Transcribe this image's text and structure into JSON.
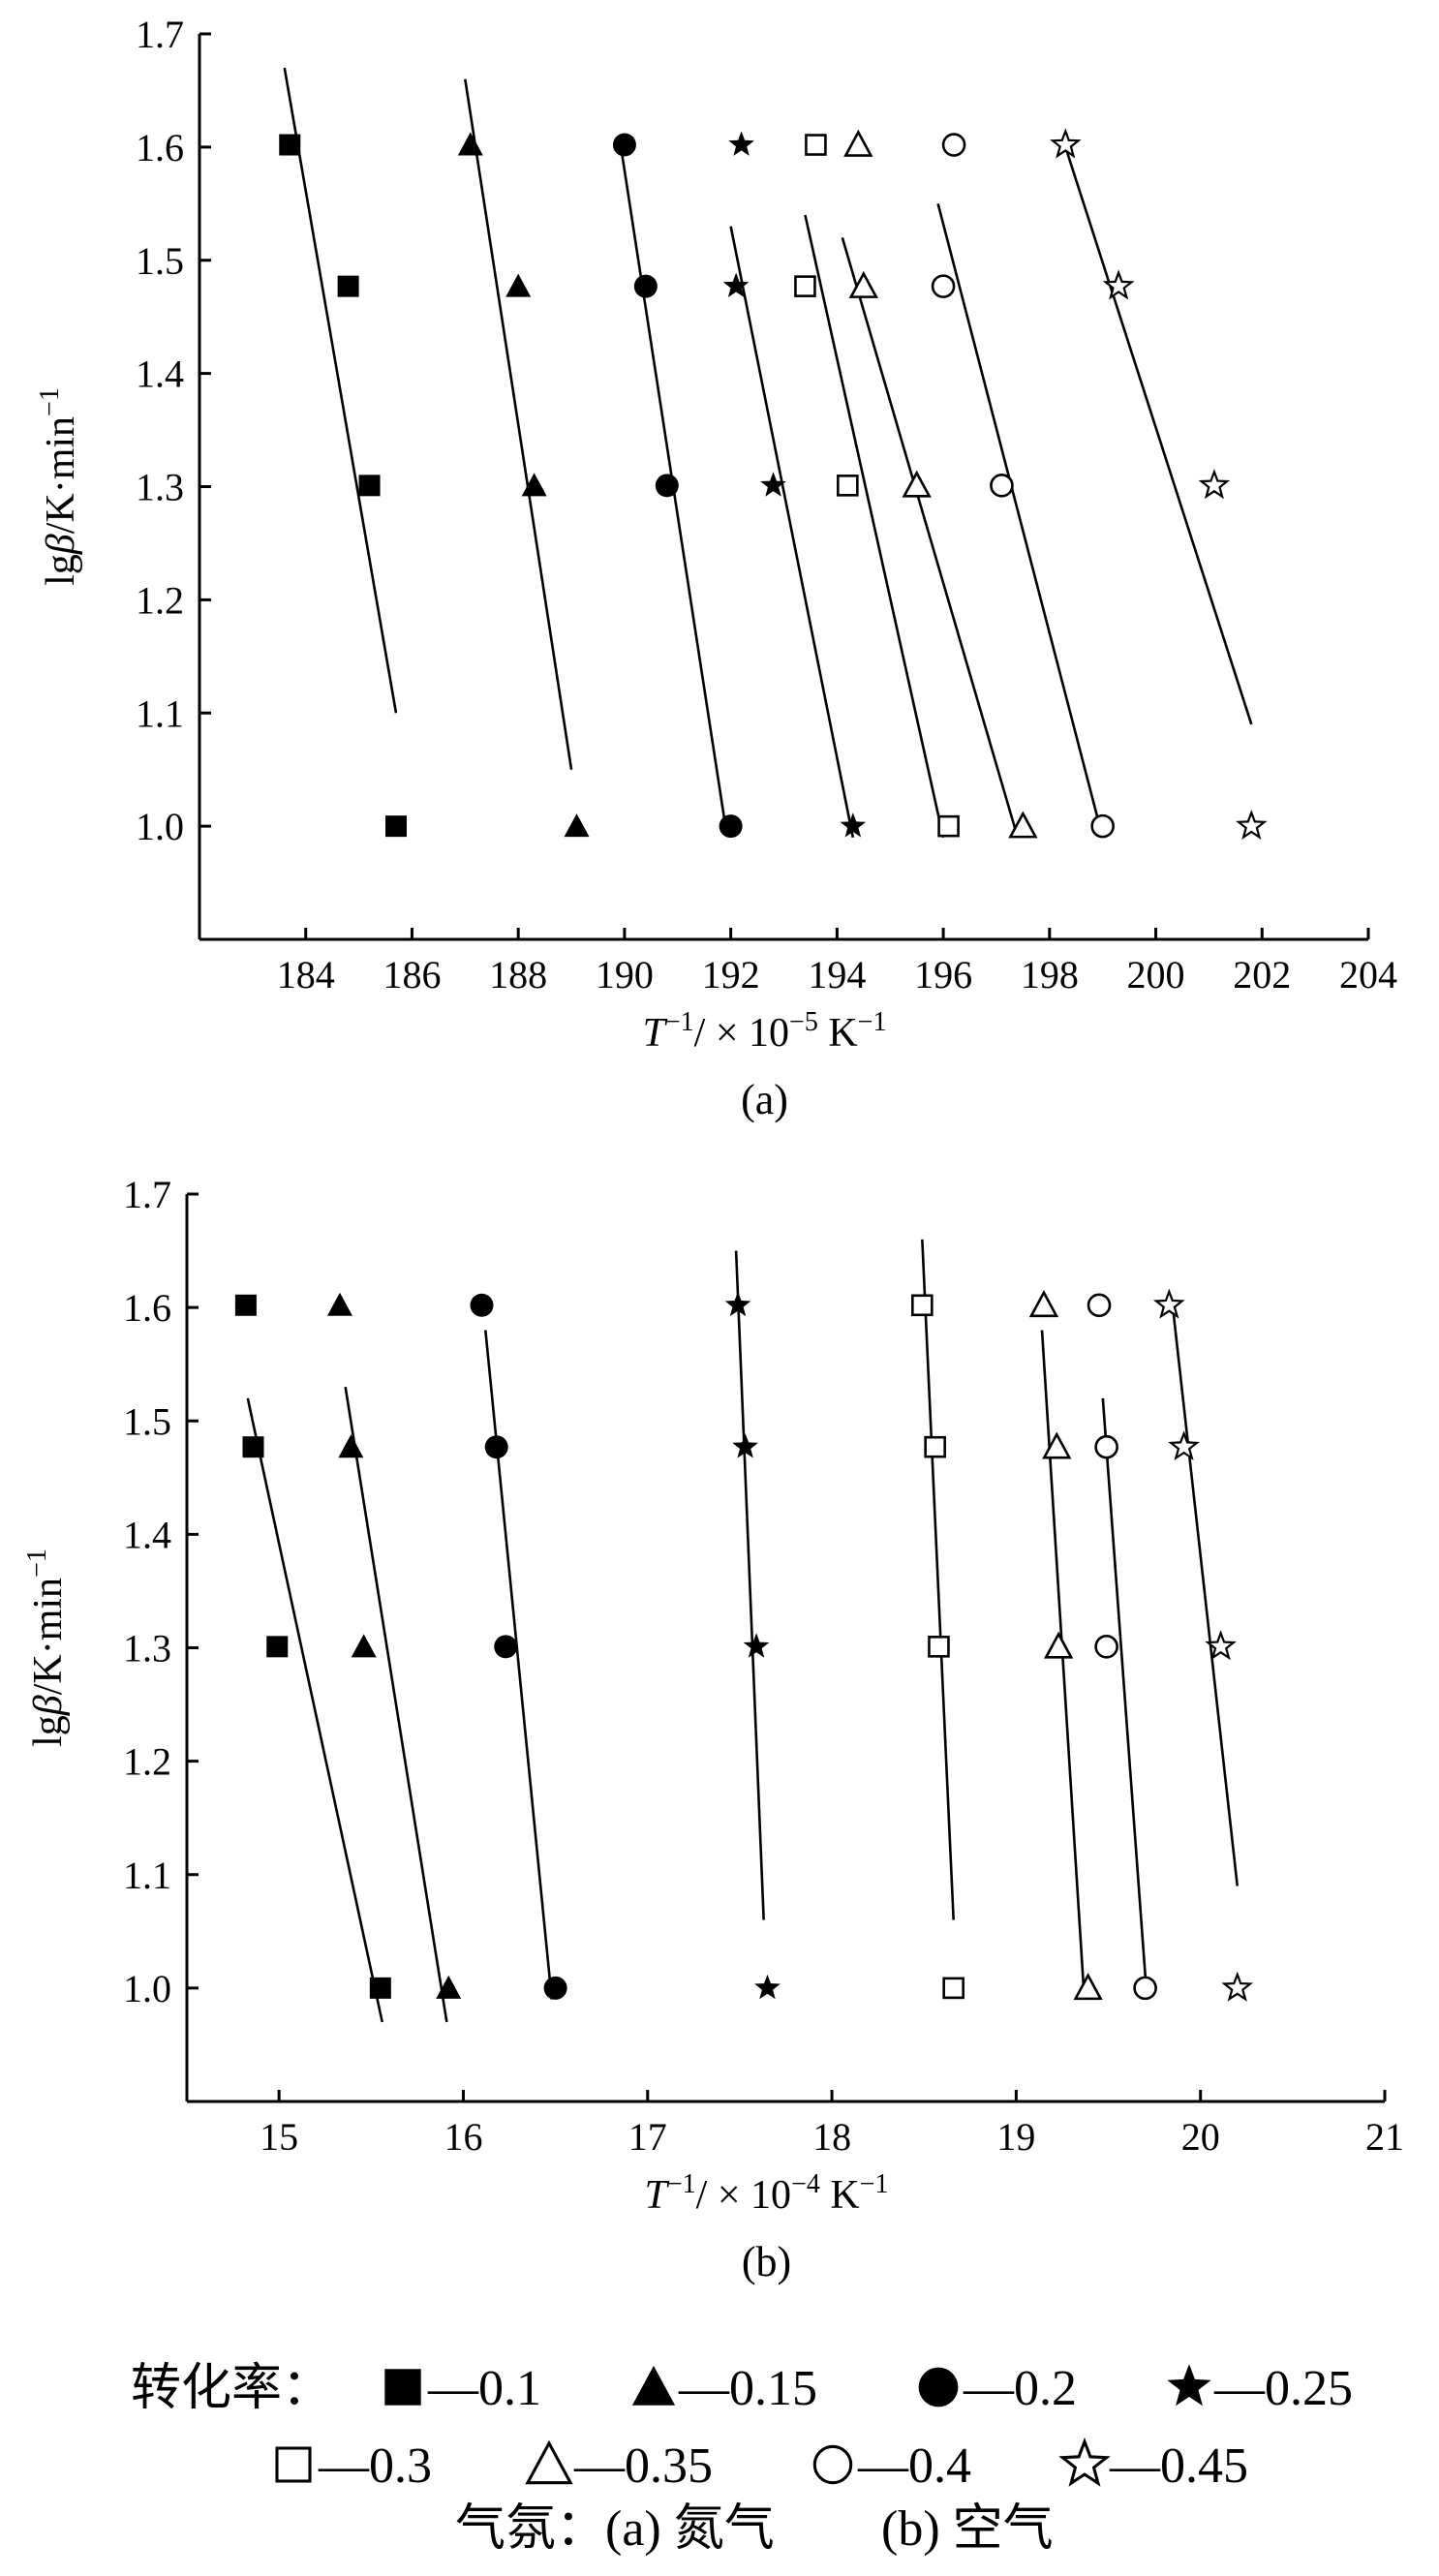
{
  "chart_data": [
    {
      "panel": "(a)",
      "type": "scatter",
      "ylabel_parts": [
        "lg",
        "β",
        "/K·min",
        "−1"
      ],
      "xlabel_parts": [
        "T",
        "−1",
        "/ × 10",
        "−5",
        " K",
        "−1"
      ],
      "xlim": [
        182,
        204
      ],
      "ylim": [
        0.9,
        1.7
      ],
      "x_ticks": [
        184,
        186,
        188,
        190,
        192,
        194,
        196,
        198,
        200,
        202,
        204
      ],
      "y_ticks": [
        1.0,
        1.1,
        1.2,
        1.3,
        1.4,
        1.5,
        1.6,
        1.7
      ],
      "y_tick_labels": [
        "1.0",
        "1.1",
        "1.2",
        "1.3",
        "1.4",
        "1.5",
        "1.6",
        "1.7"
      ],
      "series": [
        {
          "marker": "square-filled",
          "x": [
            183.7,
            184.8,
            185.2,
            185.7
          ],
          "y": [
            1.602,
            1.477,
            1.301,
            1.0
          ],
          "fit": [
            [
              183.6,
              1.67
            ],
            [
              185.7,
              1.1
            ]
          ]
        },
        {
          "marker": "triangle-filled",
          "x": [
            187.1,
            188.0,
            188.3,
            189.1
          ],
          "y": [
            1.602,
            1.477,
            1.301,
            1.0
          ],
          "fit": [
            [
              187.0,
              1.66
            ],
            [
              189.0,
              1.05
            ]
          ]
        },
        {
          "marker": "circle-filled",
          "x": [
            190.0,
            190.4,
            190.8,
            192.0
          ],
          "y": [
            1.602,
            1.477,
            1.301,
            1.0
          ],
          "fit": [
            [
              189.9,
              1.61
            ],
            [
              191.9,
              1.0
            ]
          ]
        },
        {
          "marker": "star-filled",
          "x": [
            192.2,
            192.1,
            192.8,
            194.3
          ],
          "y": [
            1.602,
            1.477,
            1.301,
            1.0
          ],
          "fit": [
            [
              192.0,
              1.53
            ],
            [
              194.3,
              0.99
            ]
          ]
        },
        {
          "marker": "square-open",
          "x": [
            193.6,
            193.4,
            194.2,
            196.1
          ],
          "y": [
            1.602,
            1.477,
            1.301,
            1.0
          ],
          "fit": [
            [
              193.4,
              1.54
            ],
            [
              196.0,
              0.99
            ]
          ]
        },
        {
          "marker": "triangle-open",
          "x": [
            194.4,
            194.5,
            195.5,
            197.5
          ],
          "y": [
            1.602,
            1.477,
            1.301,
            1.0
          ],
          "fit": [
            [
              194.1,
              1.52
            ],
            [
              197.4,
              0.99
            ]
          ]
        },
        {
          "marker": "circle-open",
          "x": [
            196.2,
            196.0,
            197.1,
            199.0
          ],
          "y": [
            1.602,
            1.477,
            1.301,
            1.0
          ],
          "fit": [
            [
              195.9,
              1.55
            ],
            [
              199.0,
              0.99
            ]
          ]
        },
        {
          "marker": "star-open",
          "x": [
            198.3,
            199.3,
            201.1,
            201.8
          ],
          "y": [
            1.602,
            1.477,
            1.301,
            1.0
          ],
          "fit": [
            [
              198.3,
              1.6
            ],
            [
              201.8,
              1.09
            ]
          ]
        }
      ]
    },
    {
      "panel": "(b)",
      "type": "scatter",
      "ylabel_parts": [
        "lg",
        "β",
        "/K·min",
        "−1"
      ],
      "xlabel_parts": [
        "T",
        "−1",
        "/ × 10",
        "−4",
        " K",
        "−1"
      ],
      "xlim": [
        14.5,
        21
      ],
      "ylim": [
        0.9,
        1.7
      ],
      "x_ticks": [
        15,
        16,
        17,
        18,
        19,
        20,
        21
      ],
      "y_ticks": [
        1.0,
        1.1,
        1.2,
        1.3,
        1.4,
        1.5,
        1.6,
        1.7
      ],
      "y_tick_labels": [
        "1.0",
        "1.1",
        "1.2",
        "1.3",
        "1.4",
        "1.5",
        "1.6",
        "1.7"
      ],
      "series": [
        {
          "marker": "square-filled",
          "x": [
            14.82,
            14.86,
            14.99,
            15.55
          ],
          "y": [
            1.602,
            1.477,
            1.301,
            1.0
          ],
          "fit": [
            [
              14.83,
              1.52
            ],
            [
              15.56,
              0.97
            ]
          ]
        },
        {
          "marker": "triangle-filled",
          "x": [
            15.33,
            15.39,
            15.46,
            15.92
          ],
          "y": [
            1.602,
            1.477,
            1.301,
            1.0
          ],
          "fit": [
            [
              15.36,
              1.53
            ],
            [
              15.91,
              0.97
            ]
          ]
        },
        {
          "marker": "circle-filled",
          "x": [
            16.1,
            16.18,
            16.23,
            16.5
          ],
          "y": [
            1.602,
            1.477,
            1.301,
            1.0
          ],
          "fit": [
            [
              16.12,
              1.58
            ],
            [
              16.48,
              0.99
            ]
          ]
        },
        {
          "marker": "star-filled",
          "x": [
            17.49,
            17.53,
            17.59,
            17.65
          ],
          "y": [
            1.602,
            1.477,
            1.301,
            1.0
          ],
          "fit": [
            [
              17.48,
              1.65
            ],
            [
              17.63,
              1.06
            ]
          ]
        },
        {
          "marker": "square-open",
          "x": [
            18.49,
            18.56,
            18.58,
            18.66
          ],
          "y": [
            1.602,
            1.477,
            1.301,
            1.0
          ],
          "fit": [
            [
              18.49,
              1.66
            ],
            [
              18.66,
              1.06
            ]
          ]
        },
        {
          "marker": "triangle-open",
          "x": [
            19.15,
            19.22,
            19.23,
            19.39
          ],
          "y": [
            1.602,
            1.477,
            1.301,
            1.0
          ],
          "fit": [
            [
              19.14,
              1.58
            ],
            [
              19.37,
              0.99
            ]
          ]
        },
        {
          "marker": "circle-open",
          "x": [
            19.45,
            19.49,
            19.49,
            19.7
          ],
          "y": [
            1.602,
            1.477,
            1.301,
            1.0
          ],
          "fit": [
            [
              19.47,
              1.52
            ],
            [
              19.71,
              0.99
            ]
          ]
        },
        {
          "marker": "star-open",
          "x": [
            19.83,
            19.91,
            20.11,
            20.2
          ],
          "y": [
            1.602,
            1.477,
            1.301,
            1.0
          ],
          "fit": [
            [
              19.85,
              1.6
            ],
            [
              20.2,
              1.09
            ]
          ]
        }
      ]
    }
  ],
  "legend": {
    "conversion_label": "转化率：",
    "items": [
      {
        "marker": "square-filled",
        "label": "—0.1"
      },
      {
        "marker": "triangle-filled",
        "label": "—0.15"
      },
      {
        "marker": "circle-filled",
        "label": "—0.2"
      },
      {
        "marker": "star-filled",
        "label": "—0.25"
      },
      {
        "marker": "square-open",
        "label": "—0.3"
      },
      {
        "marker": "triangle-open",
        "label": "—0.35"
      },
      {
        "marker": "circle-open",
        "label": "—0.4"
      },
      {
        "marker": "star-open",
        "label": "—0.45"
      }
    ],
    "atmosphere_label": "气氛：",
    "atmosphere_a": "(a) 氮气",
    "atmosphere_b": "(b) 空气"
  }
}
